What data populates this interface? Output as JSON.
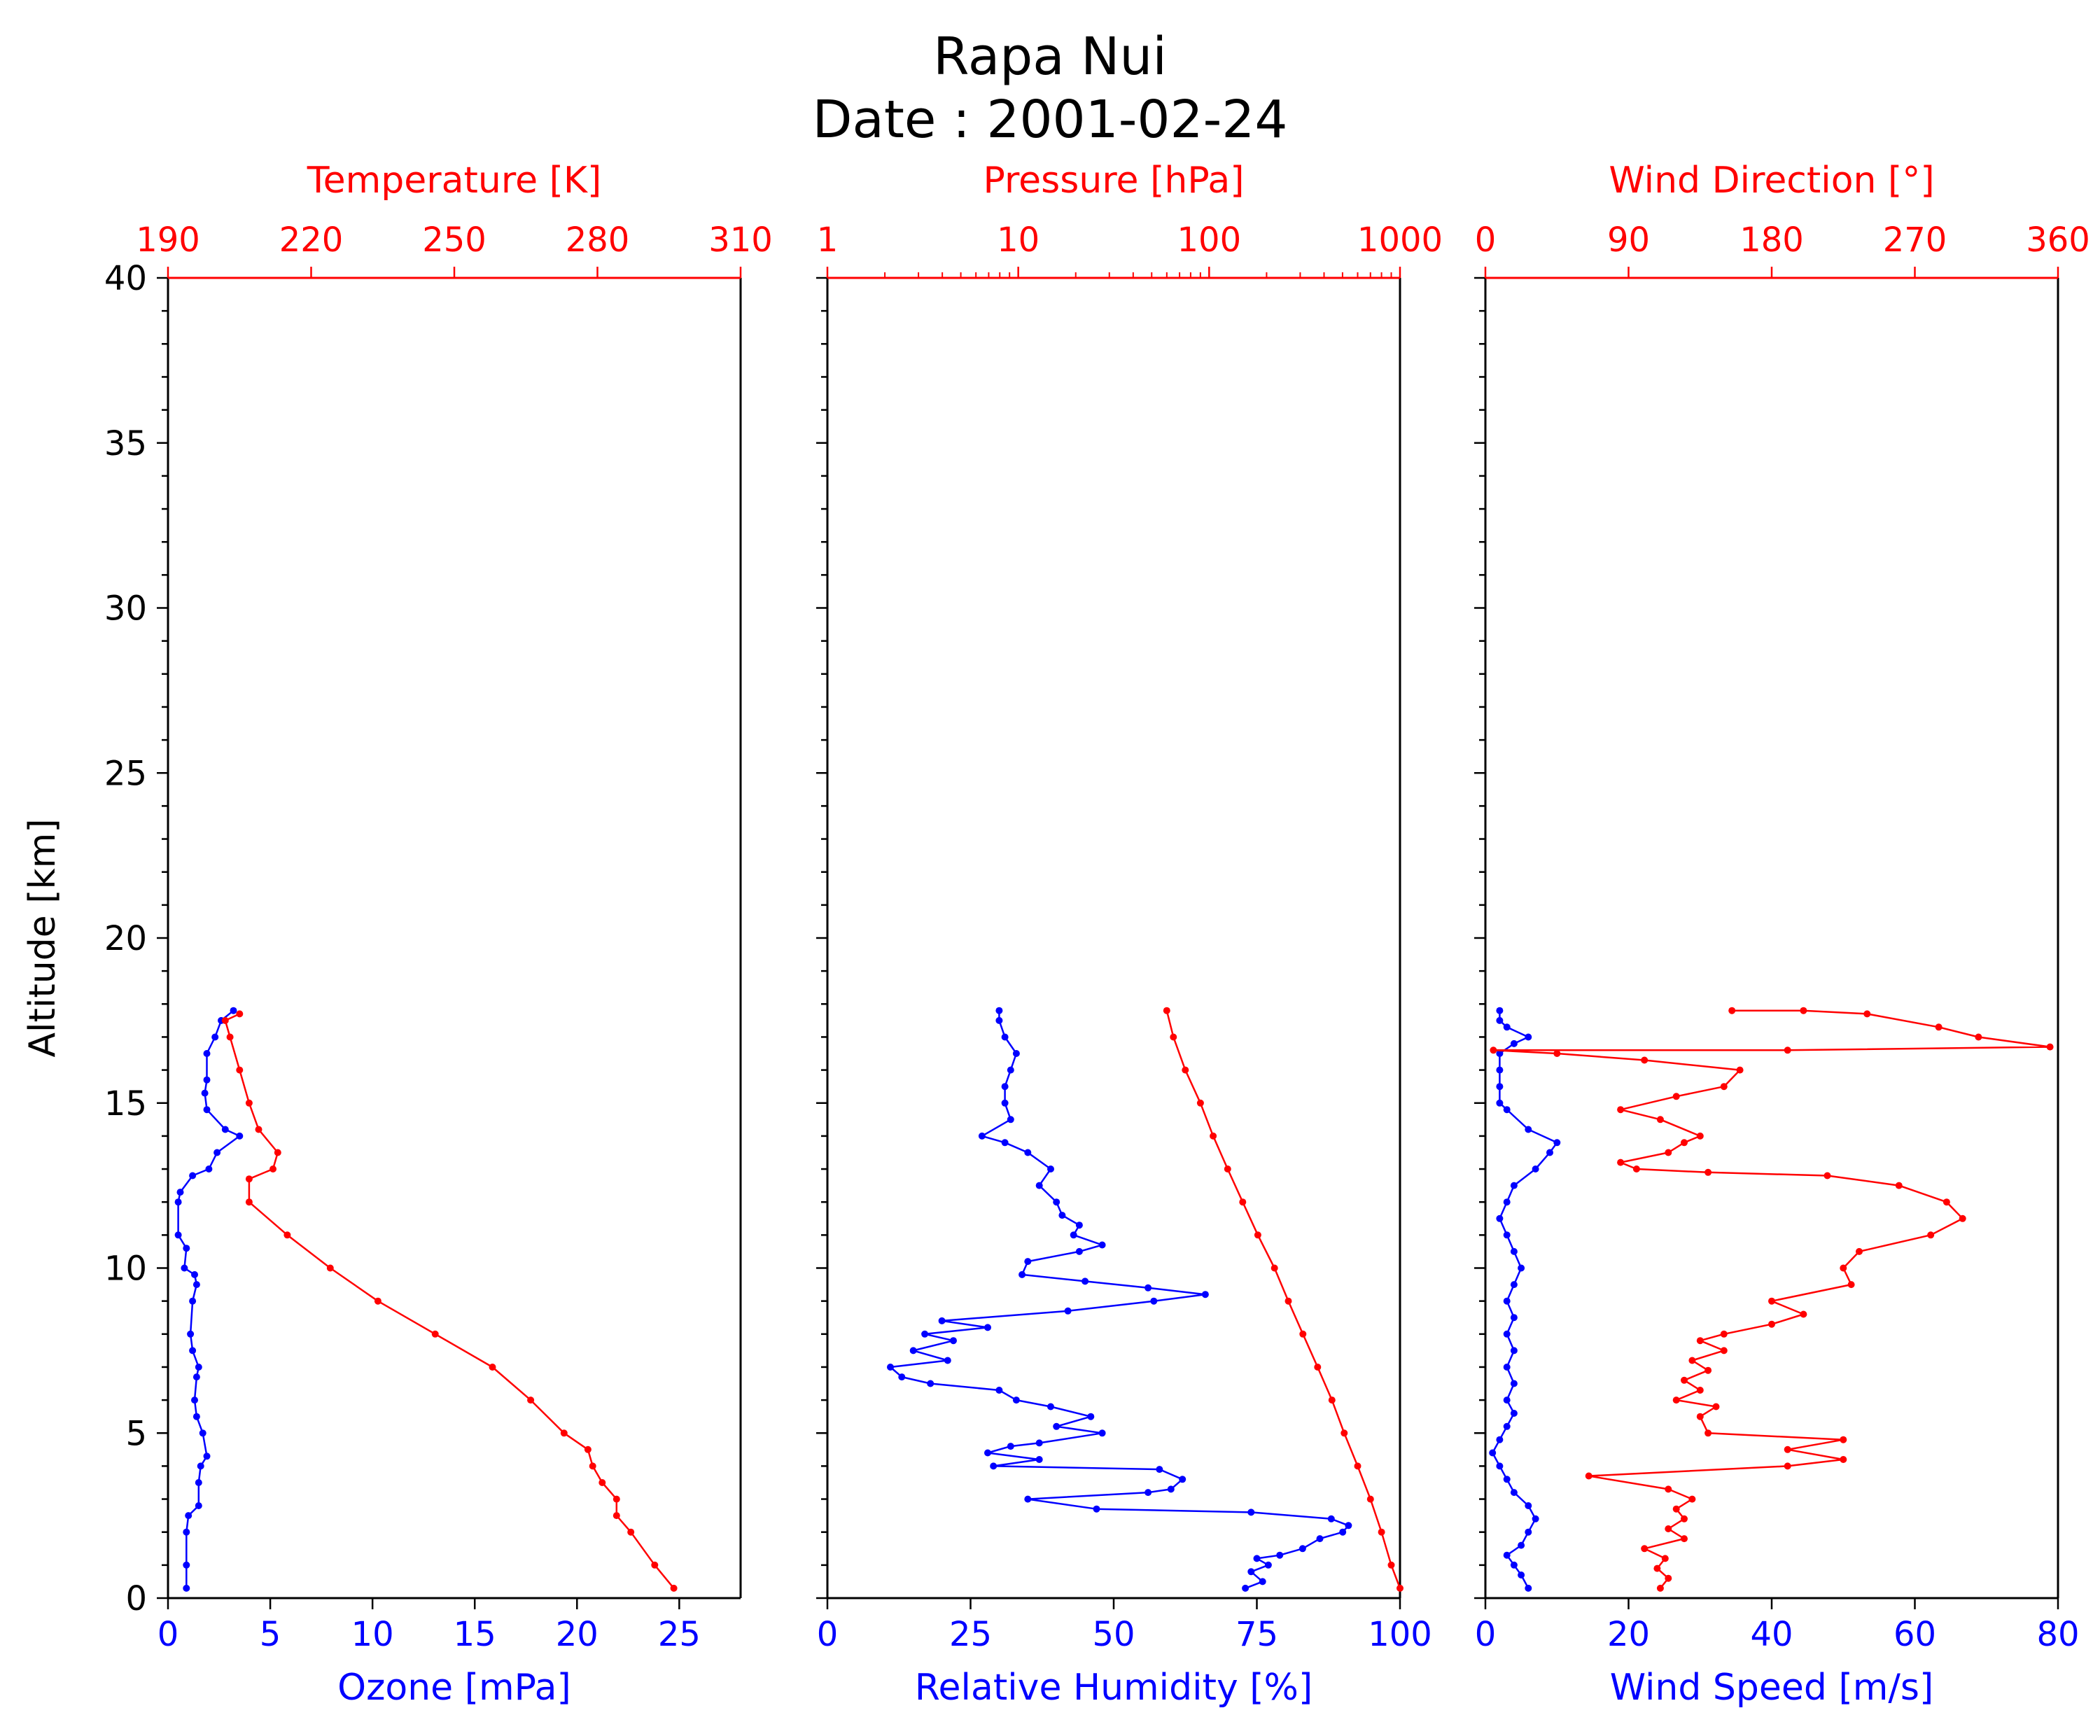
{
  "title": {
    "line1": "Rapa Nui",
    "line2": "Date : 2001-02-24"
  },
  "colors": {
    "primary_series": "#0000ff",
    "secondary_series": "#ff0000",
    "frame": "#000000",
    "background": "#ffffff"
  },
  "chart_data": [
    {
      "type": "line",
      "panel": "left",
      "ylabel": "Altitude [km]",
      "ylim": [
        0,
        40
      ],
      "yticks": [
        0,
        5,
        10,
        15,
        20,
        25,
        30,
        35,
        40
      ],
      "bottom_axis": {
        "label": "Ozone [mPa]",
        "lim": [
          0,
          28
        ],
        "ticks": [
          0,
          5,
          10,
          15,
          20,
          25
        ],
        "color": "#0000ff"
      },
      "top_axis": {
        "label": "Temperature [K]",
        "lim": [
          190,
          310
        ],
        "ticks": [
          190,
          220,
          250,
          280,
          310
        ],
        "color": "#ff0000"
      },
      "series": [
        {
          "axis": "bottom",
          "color": "#0000ff",
          "markers": true,
          "points": [
            [
              0.9,
              0.3
            ],
            [
              0.9,
              1.0
            ],
            [
              0.9,
              2.0
            ],
            [
              1.0,
              2.5
            ],
            [
              1.5,
              2.8
            ],
            [
              1.5,
              3.5
            ],
            [
              1.6,
              4.0
            ],
            [
              1.9,
              4.3
            ],
            [
              1.7,
              5.0
            ],
            [
              1.4,
              5.5
            ],
            [
              1.3,
              6.0
            ],
            [
              1.4,
              6.7
            ],
            [
              1.5,
              7.0
            ],
            [
              1.2,
              7.5
            ],
            [
              1.1,
              8.0
            ],
            [
              1.2,
              9.0
            ],
            [
              1.4,
              9.5
            ],
            [
              1.3,
              9.8
            ],
            [
              0.8,
              10.0
            ],
            [
              0.9,
              10.6
            ],
            [
              0.5,
              11.0
            ],
            [
              0.5,
              12.0
            ],
            [
              0.6,
              12.3
            ],
            [
              1.2,
              12.8
            ],
            [
              2.0,
              13.0
            ],
            [
              2.4,
              13.5
            ],
            [
              3.5,
              14.0
            ],
            [
              2.8,
              14.2
            ],
            [
              1.9,
              14.8
            ],
            [
              1.8,
              15.3
            ],
            [
              1.9,
              15.7
            ],
            [
              1.9,
              16.5
            ],
            [
              2.3,
              17.0
            ],
            [
              2.6,
              17.5
            ],
            [
              3.2,
              17.8
            ]
          ]
        },
        {
          "axis": "top",
          "color": "#ff0000",
          "markers": true,
          "points": [
            [
              296,
              0.3
            ],
            [
              292,
              1.0
            ],
            [
              287,
              2.0
            ],
            [
              284,
              2.5
            ],
            [
              284,
              3.0
            ],
            [
              281,
              3.5
            ],
            [
              279,
              4.0
            ],
            [
              278,
              4.5
            ],
            [
              273,
              5.0
            ],
            [
              266,
              6.0
            ],
            [
              258,
              7.0
            ],
            [
              246,
              8.0
            ],
            [
              234,
              9.0
            ],
            [
              224,
              10.0
            ],
            [
              215,
              11.0
            ],
            [
              207,
              12.0
            ],
            [
              207,
              12.7
            ],
            [
              212,
              13.0
            ],
            [
              213,
              13.5
            ],
            [
              209,
              14.2
            ],
            [
              207,
              15.0
            ],
            [
              205,
              16.0
            ],
            [
              203,
              17.0
            ],
            [
              202,
              17.5
            ],
            [
              205,
              17.7
            ]
          ]
        }
      ]
    },
    {
      "type": "line",
      "panel": "middle",
      "ylim": [
        0,
        40
      ],
      "bottom_axis": {
        "label": "Relative Humidity [%]",
        "lim": [
          0,
          100
        ],
        "ticks": [
          0,
          25,
          50,
          75,
          100
        ],
        "color": "#0000ff"
      },
      "top_axis": {
        "label": "Pressure [hPa]",
        "lim": [
          1,
          1000
        ],
        "ticks": [
          1,
          10,
          100,
          1000
        ],
        "scale": "log",
        "color": "#ff0000"
      },
      "series": [
        {
          "axis": "bottom",
          "color": "#0000ff",
          "markers": true,
          "points": [
            [
              73,
              0.3
            ],
            [
              76,
              0.5
            ],
            [
              74,
              0.8
            ],
            [
              77,
              1.0
            ],
            [
              75,
              1.2
            ],
            [
              79,
              1.3
            ],
            [
              83,
              1.5
            ],
            [
              86,
              1.8
            ],
            [
              90,
              2.0
            ],
            [
              91,
              2.2
            ],
            [
              88,
              2.4
            ],
            [
              74,
              2.6
            ],
            [
              47,
              2.7
            ],
            [
              35,
              3.0
            ],
            [
              56,
              3.2
            ],
            [
              60,
              3.3
            ],
            [
              62,
              3.6
            ],
            [
              58,
              3.9
            ],
            [
              29,
              4.0
            ],
            [
              37,
              4.2
            ],
            [
              28,
              4.4
            ],
            [
              32,
              4.6
            ],
            [
              37,
              4.7
            ],
            [
              48,
              5.0
            ],
            [
              40,
              5.2
            ],
            [
              46,
              5.5
            ],
            [
              39,
              5.8
            ],
            [
              33,
              6.0
            ],
            [
              30,
              6.3
            ],
            [
              18,
              6.5
            ],
            [
              13,
              6.7
            ],
            [
              11,
              7.0
            ],
            [
              21,
              7.2
            ],
            [
              15,
              7.5
            ],
            [
              22,
              7.8
            ],
            [
              17,
              8.0
            ],
            [
              28,
              8.2
            ],
            [
              20,
              8.4
            ],
            [
              42,
              8.7
            ],
            [
              57,
              9.0
            ],
            [
              66,
              9.2
            ],
            [
              56,
              9.4
            ],
            [
              45,
              9.6
            ],
            [
              34,
              9.8
            ],
            [
              35,
              10.2
            ],
            [
              44,
              10.5
            ],
            [
              48,
              10.7
            ],
            [
              43,
              11.0
            ],
            [
              44,
              11.3
            ],
            [
              41,
              11.6
            ],
            [
              40,
              12.0
            ],
            [
              37,
              12.5
            ],
            [
              39,
              13.0
            ],
            [
              35,
              13.5
            ],
            [
              31,
              13.8
            ],
            [
              27,
              14.0
            ],
            [
              32,
              14.5
            ],
            [
              31,
              15.0
            ],
            [
              31,
              15.5
            ],
            [
              32,
              16.0
            ],
            [
              33,
              16.5
            ],
            [
              31,
              17.0
            ],
            [
              30,
              17.5
            ],
            [
              30,
              17.8
            ]
          ]
        },
        {
          "axis": "top",
          "color": "#ff0000",
          "markers": true,
          "points": [
            [
              1000,
              0.3
            ],
            [
              900,
              1.0
            ],
            [
              800,
              2.0
            ],
            [
              700,
              3.0
            ],
            [
              600,
              4.0
            ],
            [
              510,
              5.0
            ],
            [
              440,
              6.0
            ],
            [
              370,
              7.0
            ],
            [
              310,
              8.0
            ],
            [
              260,
              9.0
            ],
            [
              220,
              10.0
            ],
            [
              180,
              11.0
            ],
            [
              150,
              12.0
            ],
            [
              125,
              13.0
            ],
            [
              105,
              14.0
            ],
            [
              90,
              15.0
            ],
            [
              75,
              16.0
            ],
            [
              65,
              17.0
            ],
            [
              60,
              17.8
            ]
          ]
        }
      ]
    },
    {
      "type": "line",
      "panel": "right",
      "ylim": [
        0,
        40
      ],
      "bottom_axis": {
        "label": "Wind Speed [m/s]",
        "lim": [
          0,
          80
        ],
        "ticks": [
          0,
          20,
          40,
          60,
          80
        ],
        "color": "#0000ff"
      },
      "top_axis": {
        "label": "Wind Direction [°]",
        "lim": [
          0,
          360
        ],
        "ticks": [
          0,
          90,
          180,
          270,
          360
        ],
        "color": "#ff0000"
      },
      "series": [
        {
          "axis": "bottom",
          "color": "#0000ff",
          "markers": true,
          "points": [
            [
              6,
              0.3
            ],
            [
              5,
              0.7
            ],
            [
              4,
              1.0
            ],
            [
              3,
              1.3
            ],
            [
              5,
              1.6
            ],
            [
              6,
              2.0
            ],
            [
              7,
              2.4
            ],
            [
              6,
              2.8
            ],
            [
              4,
              3.2
            ],
            [
              3,
              3.6
            ],
            [
              2,
              4.0
            ],
            [
              1,
              4.4
            ],
            [
              2,
              4.8
            ],
            [
              3,
              5.2
            ],
            [
              4,
              5.6
            ],
            [
              3,
              6.0
            ],
            [
              4,
              6.5
            ],
            [
              3,
              7.0
            ],
            [
              4,
              7.5
            ],
            [
              3,
              8.0
            ],
            [
              4,
              8.5
            ],
            [
              3,
              9.0
            ],
            [
              4,
              9.5
            ],
            [
              5,
              10.0
            ],
            [
              4,
              10.5
            ],
            [
              3,
              11.0
            ],
            [
              2,
              11.5
            ],
            [
              3,
              12.0
            ],
            [
              4,
              12.5
            ],
            [
              7,
              13.0
            ],
            [
              9,
              13.5
            ],
            [
              10,
              13.8
            ],
            [
              6,
              14.2
            ],
            [
              3,
              14.8
            ],
            [
              2,
              15.0
            ],
            [
              2,
              15.5
            ],
            [
              2,
              16.0
            ],
            [
              2,
              16.5
            ],
            [
              4,
              16.8
            ],
            [
              6,
              17.0
            ],
            [
              3,
              17.3
            ],
            [
              2,
              17.5
            ],
            [
              2,
              17.8
            ]
          ]
        },
        {
          "axis": "top",
          "color": "#ff0000",
          "markers": true,
          "points": [
            [
              110,
              0.3
            ],
            [
              115,
              0.6
            ],
            [
              108,
              0.9
            ],
            [
              113,
              1.2
            ],
            [
              100,
              1.5
            ],
            [
              125,
              1.8
            ],
            [
              115,
              2.1
            ],
            [
              125,
              2.4
            ],
            [
              120,
              2.7
            ],
            [
              130,
              3.0
            ],
            [
              115,
              3.3
            ],
            [
              65,
              3.7
            ],
            [
              190,
              4.0
            ],
            [
              225,
              4.2
            ],
            [
              190,
              4.5
            ],
            [
              225,
              4.8
            ],
            [
              140,
              5.0
            ],
            [
              135,
              5.5
            ],
            [
              145,
              5.8
            ],
            [
              120,
              6.0
            ],
            [
              135,
              6.3
            ],
            [
              125,
              6.6
            ],
            [
              140,
              6.9
            ],
            [
              130,
              7.2
            ],
            [
              150,
              7.5
            ],
            [
              135,
              7.8
            ],
            [
              150,
              8.0
            ],
            [
              180,
              8.3
            ],
            [
              200,
              8.6
            ],
            [
              180,
              9.0
            ],
            [
              230,
              9.5
            ],
            [
              225,
              10.0
            ],
            [
              235,
              10.5
            ],
            [
              280,
              11.0
            ],
            [
              300,
              11.5
            ],
            [
              290,
              12.0
            ],
            [
              260,
              12.5
            ],
            [
              215,
              12.8
            ],
            [
              140,
              12.9
            ],
            [
              95,
              13.0
            ],
            [
              85,
              13.2
            ],
            [
              115,
              13.5
            ],
            [
              125,
              13.8
            ],
            [
              135,
              14.0
            ],
            [
              110,
              14.5
            ],
            [
              85,
              14.8
            ],
            [
              120,
              15.2
            ],
            [
              150,
              15.5
            ],
            [
              160,
              16.0
            ],
            [
              100,
              16.3
            ],
            [
              45,
              16.5
            ],
            [
              5,
              16.6
            ],
            [
              190,
              16.6
            ],
            [
              355,
              16.7
            ],
            [
              310,
              17.0
            ],
            [
              285,
              17.3
            ],
            [
              240,
              17.7
            ],
            [
              200,
              17.8
            ],
            [
              155,
              17.8
            ]
          ]
        }
      ]
    }
  ]
}
